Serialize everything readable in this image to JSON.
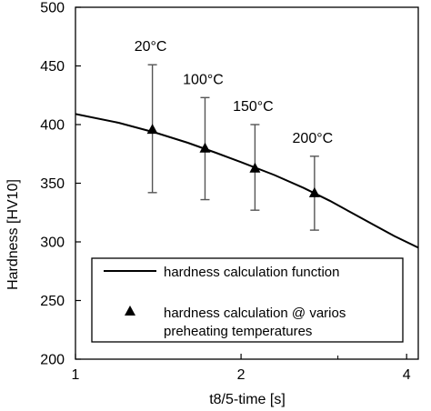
{
  "chart_data": {
    "type": "scatter",
    "xlabel": "t8/5-time [s]",
    "ylabel": "Hardness [HV10]",
    "xscale": "log",
    "xlim": [
      1,
      4.2
    ],
    "ylim": [
      200,
      500
    ],
    "xticks": [
      1,
      2,
      4
    ],
    "xtick_labels": [
      "1",
      "2",
      "4"
    ],
    "yticks": [
      200,
      250,
      300,
      350,
      400,
      450,
      500
    ],
    "ytick_labels": [
      "200",
      "250",
      "300",
      "350",
      "400",
      "450",
      "500"
    ],
    "grid": false,
    "legend_position": "bottom",
    "series": [
      {
        "name": "hardness calculation function",
        "kind": "line",
        "x": [
          1.0,
          1.2,
          1.4,
          1.6,
          1.8,
          2.0,
          2.3,
          2.6,
          2.9,
          3.2,
          3.5,
          3.8,
          4.2
        ],
        "y": [
          409,
          401.5,
          393,
          384.5,
          376,
          368,
          357,
          346,
          335,
          324,
          314,
          305,
          295
        ]
      },
      {
        "name": "hardness calculation @ varios preheating temperatures",
        "kind": "points",
        "marker": "triangle",
        "x": [
          1.38,
          1.72,
          2.12,
          2.72
        ],
        "y": [
          396,
          380,
          363,
          342
        ],
        "err_low": [
          342,
          336,
          327,
          310
        ],
        "err_high": [
          451,
          423,
          400,
          373
        ],
        "labels": [
          "20°C",
          "100°C",
          "150°C",
          "200°C"
        ]
      }
    ],
    "legend": {
      "line_label": "hardness calculation function",
      "points_label_line1": "hardness calculation @ varios",
      "points_label_line2": "preheating temperatures"
    }
  }
}
